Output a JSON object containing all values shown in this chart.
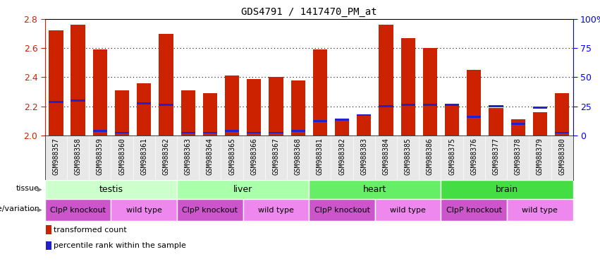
{
  "title": "GDS4791 / 1417470_PM_at",
  "samples": [
    "GSM988357",
    "GSM988358",
    "GSM988359",
    "GSM988360",
    "GSM988361",
    "GSM988362",
    "GSM988363",
    "GSM988364",
    "GSM988365",
    "GSM988366",
    "GSM988367",
    "GSM988368",
    "GSM988381",
    "GSM988382",
    "GSM988383",
    "GSM988384",
    "GSM988385",
    "GSM988386",
    "GSM988375",
    "GSM988376",
    "GSM988377",
    "GSM988378",
    "GSM988379",
    "GSM988380"
  ],
  "transformed_count": [
    2.72,
    2.76,
    2.59,
    2.31,
    2.36,
    2.7,
    2.31,
    2.29,
    2.41,
    2.39,
    2.4,
    2.38,
    2.59,
    2.11,
    2.14,
    2.76,
    2.67,
    2.6,
    2.21,
    2.45,
    2.19,
    2.11,
    2.16,
    2.29
  ],
  "percentile_rank": [
    2.23,
    2.24,
    2.03,
    2.02,
    2.22,
    2.21,
    2.02,
    2.02,
    2.03,
    2.02,
    2.02,
    2.03,
    2.1,
    2.11,
    2.14,
    2.2,
    2.21,
    2.21,
    2.21,
    2.13,
    2.2,
    2.08,
    2.19,
    2.02
  ],
  "ylim": [
    2.0,
    2.8
  ],
  "yticks": [
    2.0,
    2.2,
    2.4,
    2.6,
    2.8
  ],
  "bar_color": "#cc2200",
  "blue_color": "#2222cc",
  "genotypes": [
    "ClpP knockout",
    "ClpP knockout",
    "ClpP knockout",
    "wild type",
    "wild type",
    "wild type",
    "ClpP knockout",
    "ClpP knockout",
    "ClpP knockout",
    "wild type",
    "wild type",
    "wild type",
    "ClpP knockout",
    "ClpP knockout",
    "ClpP knockout",
    "wild type",
    "wild type",
    "wild type",
    "ClpP knockout",
    "ClpP knockout",
    "ClpP knockout",
    "wild type",
    "wild type",
    "wild type"
  ],
  "tissue_regions": [
    {
      "label": "testis",
      "start": 0,
      "end": 6,
      "color": "#ccffcc"
    },
    {
      "label": "liver",
      "start": 6,
      "end": 12,
      "color": "#aaffaa"
    },
    {
      "label": "heart",
      "start": 12,
      "end": 18,
      "color": "#77ee77"
    },
    {
      "label": "brain",
      "start": 18,
      "end": 24,
      "color": "#55cc55"
    }
  ],
  "geno_color_knockout": "#cc55cc",
  "geno_color_wildtype": "#ee88ee",
  "right_yticks": [
    0,
    25,
    50,
    75,
    100
  ],
  "right_yticklabels": [
    "0",
    "25",
    "50",
    "75",
    "100%"
  ]
}
